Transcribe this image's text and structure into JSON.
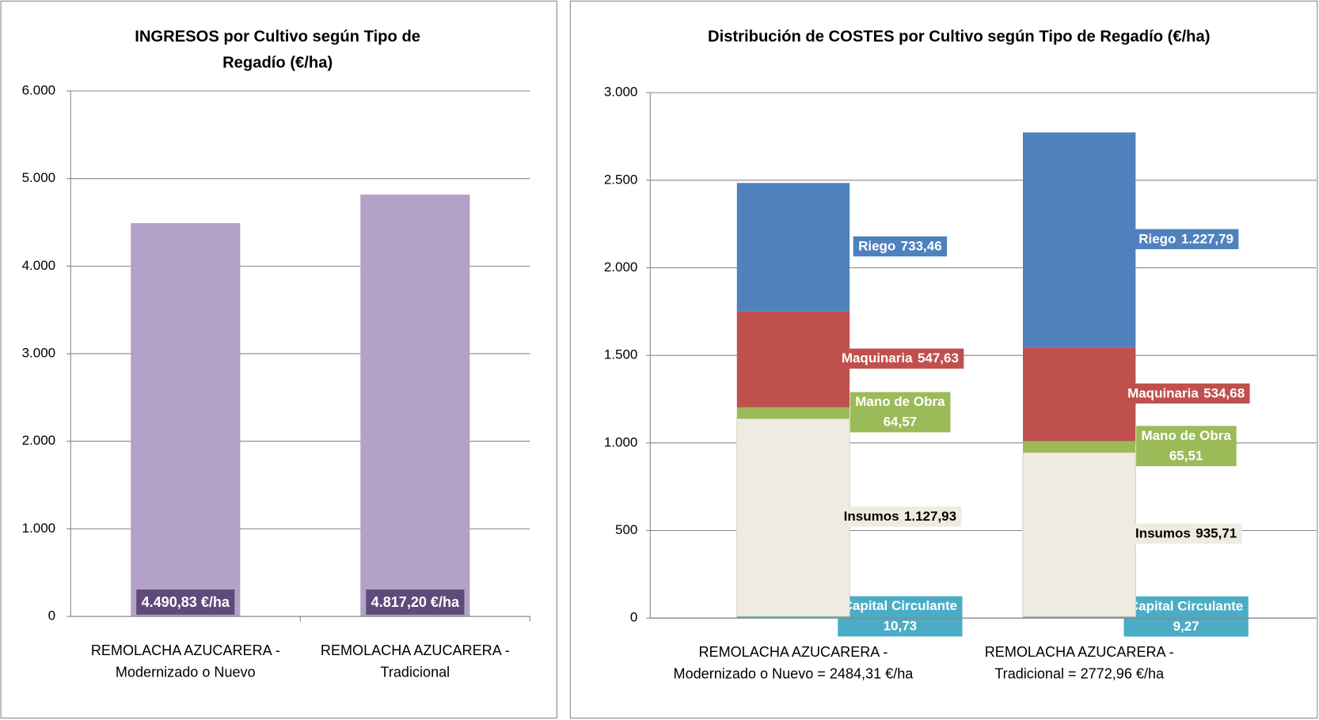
{
  "chart_data": [
    {
      "type": "bar",
      "title": "INGRESOS por Cultivo según Tipo de Regadío (€/ha)",
      "categories": [
        "REMOLACHA AZUCARERA - Modernizado o Nuevo",
        "REMOLACHA AZUCARERA - Tradicional"
      ],
      "values": [
        4490.83,
        4817.2
      ],
      "value_labels": [
        "4.490,83 €/ha",
        "4.817,20 €/ha"
      ],
      "color": "#b3a2c7",
      "label_color": "#604a7b",
      "ylim": [
        0,
        6000
      ],
      "yticks": [
        0,
        {
          "value": 1000,
          "label": "1.000"
        },
        {
          "value": 2000,
          "label": "2.000"
        },
        {
          "value": 3000,
          "label": "3.000"
        },
        {
          "value": 4000,
          "label": "4.000"
        },
        {
          "value": 5000,
          "label": "5.000"
        },
        {
          "value": 6000,
          "label": "6.000"
        }
      ],
      "grid": true
    },
    {
      "type": "stacked_bar",
      "title": "Distribución de COSTES por Cultivo según Tipo de Regadío (€/ha)",
      "categories": [
        "REMOLACHA AZUCARERA - Modernizado o Nuevo = 2484,31 €/ha",
        "REMOLACHA AZUCARERA - Tradicional = 2772,96 €/ha"
      ],
      "series": [
        {
          "name": "Capital Circulante",
          "color": "#4bacc6",
          "values": [
            10.73,
            9.27
          ],
          "value_labels": [
            "10,73",
            "9,27"
          ]
        },
        {
          "name": "Insumos",
          "color": "#eeece1",
          "values": [
            1127.93,
            935.71
          ],
          "value_labels": [
            "1.127,93",
            "935,71"
          ]
        },
        {
          "name": "Mano de Obra",
          "color": "#9bbb59",
          "values": [
            64.57,
            65.51
          ],
          "value_labels": [
            "64,57",
            "65,51"
          ]
        },
        {
          "name": "Maquinaria",
          "color": "#c0504d",
          "values": [
            547.63,
            534.68
          ],
          "value_labels": [
            "547,63",
            "534,68"
          ]
        },
        {
          "name": "Riego",
          "color": "#4f81bd",
          "values": [
            733.46,
            1227.79
          ],
          "value_labels": [
            "733,46",
            "1.227,79"
          ]
        }
      ],
      "ylim": [
        0,
        3000
      ],
      "yticks": [
        0,
        500,
        {
          "value": 1000,
          "label": "1.000"
        },
        {
          "value": 1500,
          "label": "1.500"
        },
        {
          "value": 2000,
          "label": "2.000"
        },
        {
          "value": 2500,
          "label": "2.500"
        },
        {
          "value": 3000,
          "label": "3.000"
        }
      ],
      "grid": true
    }
  ]
}
